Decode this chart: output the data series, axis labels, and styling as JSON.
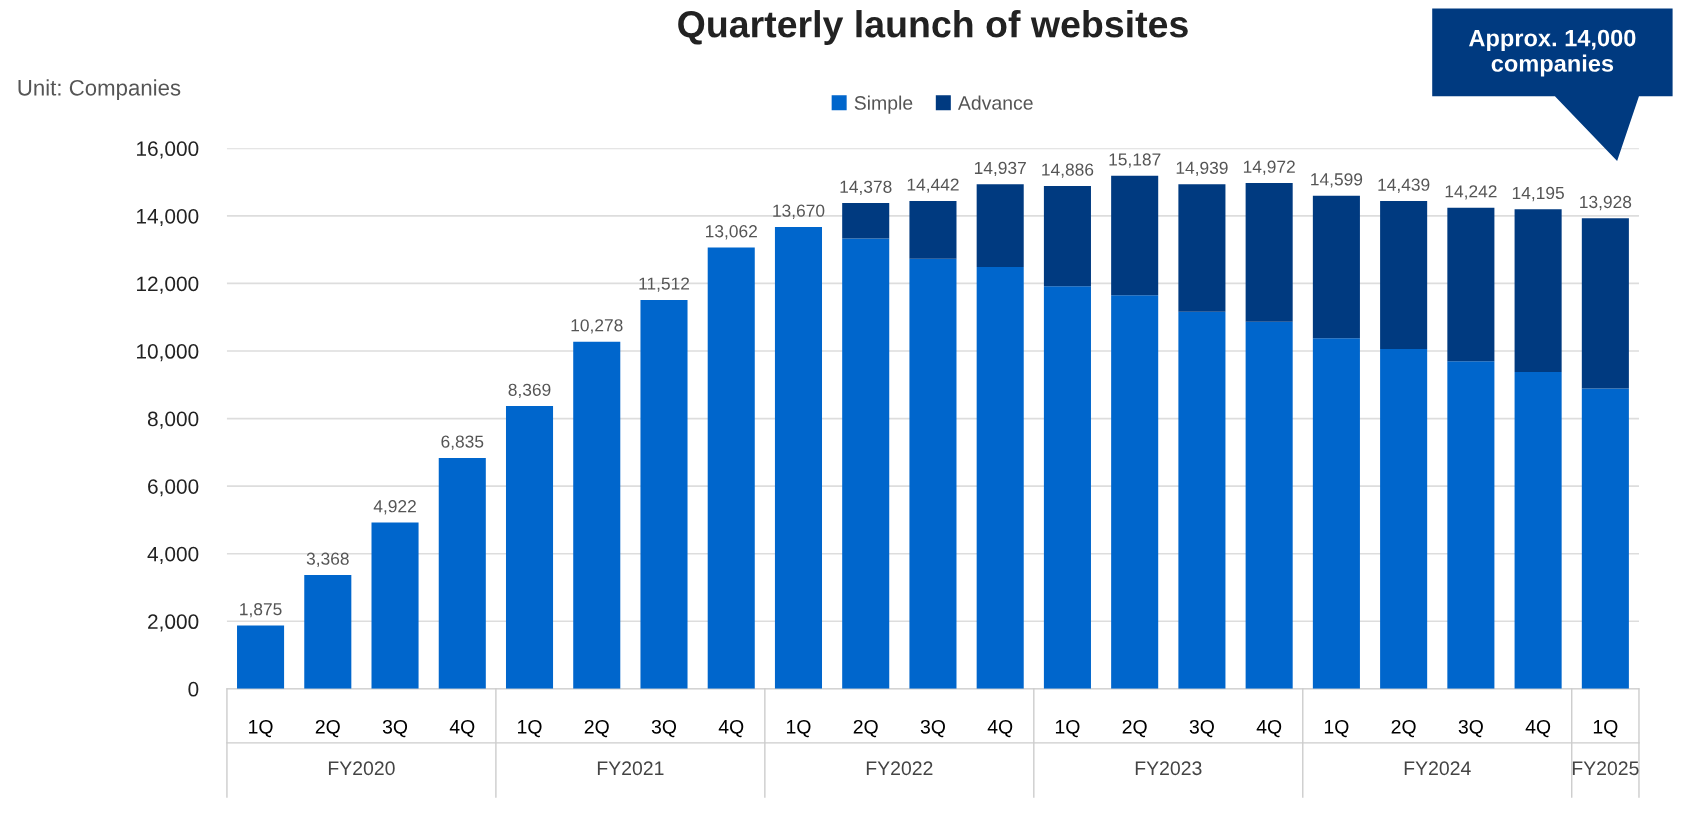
{
  "chart_data": {
    "type": "bar",
    "title": "Quarterly launch of websites",
    "ylabel": "Unit: Companies",
    "categories": [
      "1Q",
      "2Q",
      "3Q",
      "4Q",
      "1Q",
      "2Q",
      "3Q",
      "4Q",
      "1Q",
      "2Q",
      "3Q",
      "4Q",
      "1Q",
      "2Q",
      "3Q",
      "4Q",
      "1Q",
      "2Q",
      "3Q",
      "4Q",
      "1Q"
    ],
    "series": [
      {
        "name": "Simple",
        "color": "#0066cc",
        "values": [
          1875,
          3368,
          4922,
          6835,
          8369,
          10278,
          11512,
          13062,
          13670,
          13330,
          12730,
          12490,
          11920,
          11650,
          11160,
          10870,
          10380,
          10060,
          9700,
          9380,
          8890
        ]
      },
      {
        "name": "Advance",
        "color": "#003a80",
        "values": [
          null,
          null,
          null,
          null,
          null,
          null,
          null,
          null,
          null,
          1048,
          1712,
          2447,
          2966,
          3537,
          3779,
          4102,
          4219,
          4379,
          4542,
          4815,
          5038
        ]
      }
    ],
    "stacked": true,
    "totals": [
      "1,875",
      "3,368",
      "4,922",
      "6,835",
      "8,369",
      "10,278",
      "11,512",
      "13,062",
      "13,670",
      "14,378",
      "14,442",
      "14,937",
      "14,886",
      "15,187",
      "14,939",
      "14,972",
      "14,599",
      "14,439",
      "14,242",
      "14,195",
      "13,928"
    ],
    "ylim": [
      0,
      16000
    ],
    "yticks": [
      {
        "value": 0,
        "label": "0"
      },
      {
        "value": 2000,
        "label": "2,000"
      },
      {
        "value": 4000,
        "label": "4,000"
      },
      {
        "value": 6000,
        "label": "6,000"
      },
      {
        "value": 8000,
        "label": "8,000"
      },
      {
        "value": 10000,
        "label": "10,000"
      },
      {
        "value": 12000,
        "label": "12,000"
      },
      {
        "value": 14000,
        "label": "14,000"
      },
      {
        "value": 16000,
        "label": "16,000"
      }
    ],
    "grid": "y",
    "legend": "top",
    "annotations": [
      "Approx. 14,000 companies",
      "FY2020",
      "FY2021",
      "FY2022",
      "FY2023",
      "FY2024",
      "FY2025"
    ]
  }
}
